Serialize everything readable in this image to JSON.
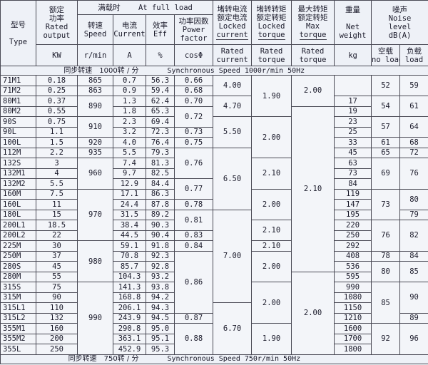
{
  "header": {
    "type": {
      "zh": "型号",
      "en": "Type"
    },
    "output": {
      "zh": [
        "额定",
        "功率"
      ],
      "en": [
        "Rated",
        "output"
      ],
      "unit": "KW"
    },
    "full_load": {
      "zh": "满载时",
      "en": "At full load"
    },
    "speed": {
      "zh": "转速",
      "en": "Speed",
      "unit": "r/min"
    },
    "current": {
      "zh": "电流",
      "en": "Current",
      "unit": "A"
    },
    "eff": {
      "zh": "效率",
      "en": "Eff",
      "unit": "%"
    },
    "power_factor": {
      "zh": "功率因数",
      "en": [
        "Power",
        "factor"
      ],
      "unit": "cosΦ"
    },
    "locked_current": {
      "zh": [
        "堵转电流",
        "额定电流"
      ],
      "en": [
        "Locked",
        "current"
      ],
      "denominator": [
        "Rated",
        "current"
      ]
    },
    "locked_torque": {
      "zh": [
        "堵转转矩",
        "额定转矩"
      ],
      "en": [
        "Locked",
        "torque"
      ],
      "denominator": [
        "Rated",
        "torque"
      ]
    },
    "max_torque": {
      "zh": [
        "最大转矩",
        "额定转矩"
      ],
      "en": [
        "Max",
        "torque"
      ],
      "denominator": [
        "Rated",
        "torque"
      ]
    },
    "weight": {
      "zh": "重量",
      "en": [
        "Net",
        "weight"
      ],
      "unit": "kg"
    },
    "noise": {
      "zh": "噪声",
      "en": [
        "Noise",
        "level",
        "dB(A)"
      ],
      "no_load": {
        "zh": "空载",
        "en": "no load"
      },
      "load": {
        "zh": "负载",
        "en": "load"
      }
    }
  },
  "sections": [
    {
      "zh": "同步转速　1000转 / 分",
      "en": "Synchronous Speed 1000r/min  50Hz"
    },
    {
      "zh": "同步转速　750转 / 分",
      "en": "Synchronous Speed 750r/min  50Hz"
    }
  ],
  "rows": {
    "type": [
      "71M1",
      "71M2",
      "80M1",
      "80M2",
      "90S",
      "90L",
      "100L",
      "112M",
      "132S",
      "132M1",
      "132M2",
      "160M",
      "160L",
      "180L",
      "200L1",
      "200L2",
      "225M",
      "250M",
      "280S",
      "280M",
      "315S",
      "315M",
      "315L1",
      "315L2",
      "355M1",
      "355M2",
      "355L"
    ],
    "output": [
      "0.18",
      "0.25",
      "0.37",
      "0.55",
      "0.75",
      "1.1",
      "1.5",
      "2.2",
      "3",
      "4",
      "5.5",
      "7.5",
      "11",
      "15",
      "18.5",
      "22",
      "30",
      "37",
      "45",
      "55",
      "75",
      "90",
      "110",
      "132",
      "160",
      "200",
      "250"
    ],
    "speed": [
      "865",
      "863",
      "890",
      "910",
      "920",
      "935",
      "960",
      "970",
      "980",
      "990"
    ],
    "current": [
      "0.7",
      "0.9",
      "1.3",
      "1.8",
      "2.3",
      "3.2",
      "4.0",
      "5.5",
      "7.4",
      "9.7",
      "12.9",
      "17.1",
      "24.4",
      "31.5",
      "38.4",
      "44.5",
      "59.1",
      "70.8",
      "85.7",
      "104.3",
      "141.3",
      "168.8",
      "206.1",
      "243.9",
      "290.8",
      "363.1",
      "452.9"
    ],
    "eff": [
      "56.3",
      "59.4",
      "62.4",
      "65.3",
      "69.4",
      "72.3",
      "76.4",
      "79.3",
      "81.3",
      "82.5",
      "84.4",
      "86.3",
      "87.8",
      "89.2",
      "90.3",
      "90.4",
      "91.8",
      "92.3",
      "92.8",
      "93.2",
      "93.8",
      "94.2",
      "94.3",
      "94.5",
      "95.0",
      "95.1",
      "95.3"
    ],
    "power_factor": [
      "0.66",
      "0.68",
      "0.70",
      "0.72",
      "0.73",
      "0.75",
      "0.76",
      "0.77",
      "0.78",
      "0.81",
      "0.83",
      "0.84",
      "0.86",
      "0.87",
      "0.88"
    ],
    "locked_current": [
      "4.00",
      "4.70",
      "5.50",
      "6.50",
      "7.00",
      "6.70"
    ],
    "locked_torque": [
      "1.90",
      "2.00",
      "2.10",
      "2.00",
      "2.10",
      "2.10",
      "2.00",
      "2.00",
      "1.90"
    ],
    "max_torque": [
      "2.00",
      "2.10",
      "2.00"
    ],
    "weight": [
      null,
      "17",
      "19",
      "23",
      "25",
      "33",
      "45",
      "63",
      "73",
      "84",
      "119",
      "147",
      "195",
      "220",
      "250",
      "292",
      "408",
      "536",
      "595",
      "990",
      "1080",
      "1150",
      "1210",
      "1600",
      "1700",
      "1800"
    ],
    "noise_no_load": [
      "52",
      "54",
      "57",
      "61",
      "65",
      "69",
      "73",
      "76",
      "78",
      "80",
      "85",
      "92"
    ],
    "noise_load": [
      "59",
      "61",
      "64",
      "68",
      "72",
      "76",
      "80",
      "79",
      "82",
      "84",
      "85",
      "90",
      "89",
      "96"
    ]
  }
}
